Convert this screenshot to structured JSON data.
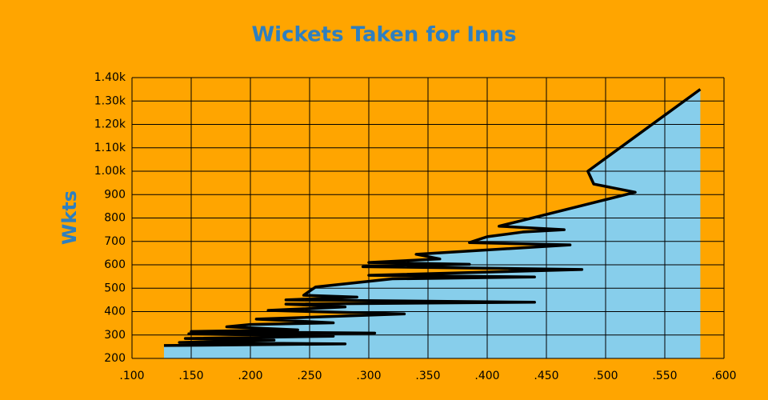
{
  "chart_data": {
    "type": "area",
    "title": "Wickets Taken for Inns",
    "y_label": "Wkts",
    "x": [
      0.127,
      0.28,
      0.14,
      0.22,
      0.145,
      0.27,
      0.148,
      0.305,
      0.15,
      0.24,
      0.18,
      0.2,
      0.27,
      0.205,
      0.33,
      0.215,
      0.28,
      0.23,
      0.44,
      0.23,
      0.29,
      0.245,
      0.255,
      0.32,
      0.44,
      0.3,
      0.48,
      0.295,
      0.385,
      0.3,
      0.36,
      0.34,
      0.47,
      0.385,
      0.4,
      0.43,
      0.465,
      0.41,
      0.43,
      0.525,
      0.49,
      0.485,
      0.58
    ],
    "values": [
      255,
      262,
      268,
      278,
      285,
      295,
      305,
      308,
      315,
      322,
      335,
      345,
      352,
      368,
      390,
      405,
      420,
      432,
      440,
      450,
      462,
      470,
      505,
      540,
      548,
      555,
      580,
      592,
      602,
      610,
      625,
      645,
      685,
      695,
      720,
      740,
      750,
      765,
      790,
      910,
      945,
      1000,
      1350
    ],
    "color": "#87ceeb",
    "line_color": "#000000",
    "xlim": [
      0.1,
      0.6
    ],
    "xticks": [
      {
        "value": 0.1,
        "label": ".100"
      },
      {
        "value": 0.15,
        "label": ".150"
      },
      {
        "value": 0.2,
        "label": ".200"
      },
      {
        "value": 0.25,
        "label": ".250"
      },
      {
        "value": 0.3,
        "label": ".300"
      },
      {
        "value": 0.35,
        "label": ".350"
      },
      {
        "value": 0.4,
        "label": ".400"
      },
      {
        "value": 0.45,
        "label": ".450"
      },
      {
        "value": 0.5,
        "label": ".500"
      },
      {
        "value": 0.55,
        "label": ".550"
      },
      {
        "value": 0.6,
        "label": ".600"
      }
    ],
    "ylim": [
      200,
      1400
    ],
    "yticks": [
      200,
      300,
      400,
      500,
      600,
      700,
      800,
      900,
      {
        "value": 1000,
        "label": "1.00k"
      },
      {
        "value": 1100,
        "label": "1.10k"
      },
      {
        "value": 1200,
        "label": "1.20k"
      },
      {
        "value": 1300,
        "label": "1.30k"
      },
      {
        "value": 1400,
        "label": "1.40k"
      }
    ],
    "grid": true
  }
}
